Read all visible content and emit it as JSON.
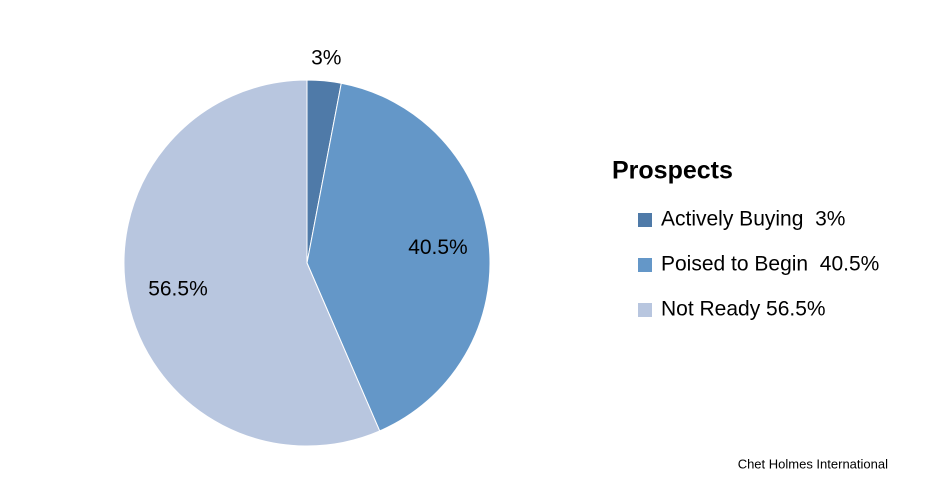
{
  "chart_data": {
    "type": "pie",
    "legend_title": "Prospects",
    "categories": [
      "Actively Buying  3%",
      "Poised to Begin  40.5%",
      "Not Ready 56.5%"
    ],
    "values": [
      3,
      40.5,
      56.5
    ],
    "value_labels": [
      "3%",
      "40.5%",
      "56.5%"
    ],
    "colors": [
      "#4f7aa8",
      "#6497c8",
      "#b8c6df"
    ],
    "source": "Chet Holmes International"
  }
}
